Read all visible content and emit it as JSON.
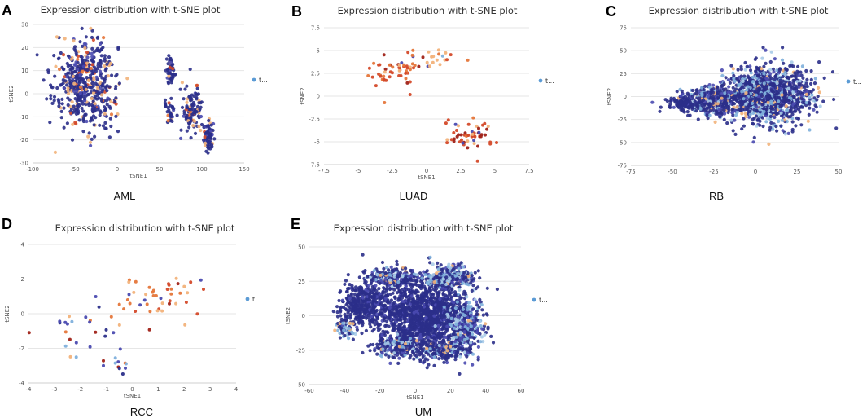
{
  "figure": {
    "background": "#ffffff"
  },
  "palette": {
    "navy": "#2b2f8a",
    "indigo": "#4a4ab0",
    "light_blue": "#7fb0dc",
    "pale_blue": "#a9cbe8",
    "peach": "#f2b27a",
    "orange": "#e5763a",
    "red_orange": "#d44a2a",
    "dark_red": "#a02218",
    "legend_dot": "#5b9bd5"
  },
  "chart_data": [
    {
      "panel": "A",
      "caption": "AML",
      "type": "scatter",
      "title": "Expression distribution with t-SNE plot",
      "xlabel": "tSNE1",
      "ylabel": "tSNE2",
      "xlim": [
        -100,
        150
      ],
      "ylim": [
        -30,
        30
      ],
      "xticks": [
        -100,
        -50,
        0,
        50,
        100,
        150
      ],
      "yticks": [
        -30,
        -20,
        -10,
        0,
        10,
        20,
        30
      ],
      "legend": {
        "label": "t..."
      },
      "clusters": [
        {
          "cx": -38,
          "cy": 3,
          "sx": 20,
          "sy": 11,
          "n": 520,
          "style": "navy_mix"
        },
        {
          "cx": 63,
          "cy": 10,
          "sx": 3,
          "sy": 4,
          "n": 50,
          "style": "navy_mix"
        },
        {
          "cx": 62,
          "cy": -8,
          "sx": 4,
          "sy": 3,
          "n": 30,
          "style": "navy_mix"
        },
        {
          "cx": 88,
          "cy": -7,
          "sx": 6,
          "sy": 6,
          "n": 110,
          "style": "navy_mix"
        },
        {
          "cx": 108,
          "cy": -18,
          "sx": 3,
          "sy": 3.5,
          "n": 75,
          "style": "navy_mix"
        }
      ]
    },
    {
      "panel": "B",
      "caption": "LUAD",
      "type": "scatter",
      "title": "Expression distribution with t-SNE plot",
      "xlabel": "tSNE1",
      "ylabel": "tSNE2",
      "xlim": [
        -7.5,
        7.5
      ],
      "ylim": [
        -7.5,
        7.5
      ],
      "xticks": [
        -7.5,
        -5,
        -2.5,
        0,
        2.5,
        5,
        7.5
      ],
      "yticks": [
        -7.5,
        -5,
        -2.5,
        0,
        2.5,
        5,
        7.5
      ],
      "legend": {
        "label": "t..."
      },
      "clusters": [
        {
          "cx": -2.4,
          "cy": 2.8,
          "sx": 1.2,
          "sy": 1.0,
          "n": 55,
          "style": "red_mix"
        },
        {
          "cx": 0.6,
          "cy": 4.2,
          "sx": 0.9,
          "sy": 0.7,
          "n": 18,
          "style": "peach_mix"
        },
        {
          "cx": 3.0,
          "cy": -4.2,
          "sx": 1.0,
          "sy": 0.9,
          "n": 55,
          "style": "red_mix"
        }
      ]
    },
    {
      "panel": "C",
      "caption": "RB",
      "type": "scatter",
      "title": "Expression distribution with t-SNE plot",
      "xlabel": "",
      "ylabel": "tSNE2",
      "xlim": [
        -75,
        50
      ],
      "ylim": [
        -75,
        75
      ],
      "xticks": [
        -75,
        -50,
        -25,
        0,
        25,
        50
      ],
      "yticks": [
        -75,
        -50,
        -25,
        0,
        25,
        50,
        75
      ],
      "legend": {
        "label": "t..."
      },
      "clusters": [
        {
          "cx": 8,
          "cy": 2,
          "sx": 14,
          "sy": 17,
          "n": 1300,
          "style": "blue_mix"
        },
        {
          "cx": -25,
          "cy": -5,
          "sx": 11,
          "sy": 8,
          "n": 420,
          "style": "blue_mix"
        },
        {
          "cx": -42,
          "cy": -8,
          "sx": 6,
          "sy": 4,
          "n": 90,
          "style": "navy"
        }
      ]
    },
    {
      "panel": "D",
      "caption": "RCC",
      "type": "scatter",
      "title": "Expression distribution with t-SNE plot",
      "xlabel": "tSNE1",
      "ylabel": "tSNE2",
      "xlim": [
        -4,
        4
      ],
      "ylim": [
        -4,
        4
      ],
      "xticks": [
        -4,
        -3,
        -2,
        -1,
        0,
        1,
        2,
        3,
        4
      ],
      "yticks": [
        -4,
        -2,
        0,
        2,
        4
      ],
      "legend": {
        "label": "t..."
      },
      "clusters": [
        {
          "cx": 1.0,
          "cy": 1.0,
          "sx": 0.8,
          "sy": 0.8,
          "n": 45,
          "style": "orange_mix"
        },
        {
          "cx": -1.8,
          "cy": -1.0,
          "sx": 0.8,
          "sy": 0.9,
          "n": 25,
          "style": "sparse_mix"
        },
        {
          "cx": -0.5,
          "cy": -2.8,
          "sx": 0.5,
          "sy": 0.4,
          "n": 12,
          "style": "sparse_mix"
        }
      ]
    },
    {
      "panel": "E",
      "caption": "UM",
      "type": "scatter",
      "title": "Expression distribution with t-SNE plot",
      "xlabel": "tSNE1",
      "ylabel": "tSNE2",
      "xlim": [
        -60,
        60
      ],
      "ylim": [
        -50,
        50
      ],
      "xticks": [
        -60,
        -40,
        -20,
        0,
        20,
        40,
        60
      ],
      "yticks": [
        -50,
        -25,
        0,
        25,
        50
      ],
      "legend": {
        "label": "t..."
      },
      "clusters": [
        {
          "cx": 5,
          "cy": 0,
          "sx": 13,
          "sy": 14,
          "n": 1400,
          "style": "navy"
        },
        {
          "cx": -28,
          "cy": 8,
          "sx": 8,
          "sy": 9,
          "n": 420,
          "style": "navy"
        },
        {
          "cx": -12,
          "cy": 28,
          "sx": 8,
          "sy": 4,
          "n": 200,
          "style": "blue_mix"
        },
        {
          "cx": 20,
          "cy": 28,
          "sx": 8,
          "sy": 5,
          "n": 260,
          "style": "light_mix"
        },
        {
          "cx": 28,
          "cy": -8,
          "sx": 6,
          "sy": 10,
          "n": 300,
          "style": "light_mix"
        },
        {
          "cx": -40,
          "cy": -8,
          "sx": 3,
          "sy": 4,
          "n": 80,
          "style": "light_mix"
        },
        {
          "cx": -10,
          "cy": -22,
          "sx": 8,
          "sy": 4,
          "n": 200,
          "style": "blue_mix"
        },
        {
          "cx": 15,
          "cy": -25,
          "sx": 8,
          "sy": 4,
          "n": 180,
          "style": "blue_mix"
        }
      ]
    }
  ]
}
